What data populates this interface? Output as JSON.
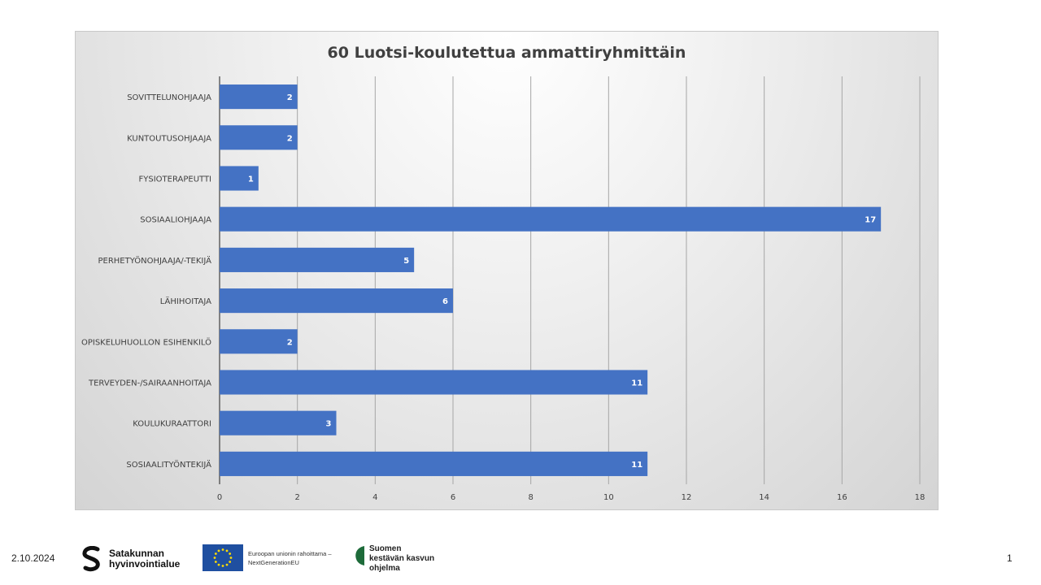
{
  "chart_data": {
    "type": "bar",
    "orientation": "horizontal",
    "title": "60 Luotsi-koulutettua ammattiryhmittäin",
    "categories": [
      "SOVITTELUNOHJAAJA",
      "KUNTOUTUSOHJAAJA",
      "FYSIOTERAPEUTTI",
      "SOSIAALIOHJAAJA",
      "PERHETYÖNOHJAAJA/-TEKIJÄ",
      "LÄHIHOITAJA",
      "OPISKELUHUOLLON ESIHENKILÖ",
      "TERVEYDEN-/SAIRAANHOITAJA",
      "KOULUKURAATTORI",
      "SOSIAALITYÖNTEKIJÄ"
    ],
    "values": [
      2,
      2,
      1,
      17,
      5,
      6,
      2,
      11,
      3,
      11
    ],
    "xlim": [
      0,
      18
    ],
    "xticks": [
      0,
      2,
      4,
      6,
      8,
      10,
      12,
      14,
      16,
      18
    ],
    "grid": true,
    "legend": "none",
    "data_labels": true,
    "bar_color": "#4472C4"
  },
  "footer": {
    "date": "2.10.2024",
    "page_number": "1",
    "logo_satakunta_line1": "Satakunnan",
    "logo_satakunta_line2": "hyvinvointialue",
    "logo_eu_line1": "Euroopan unionin rahoittama –",
    "logo_eu_line2": "NextGenerationEU",
    "logo_kasvu_line1": "Suomen",
    "logo_kasvu_line2": "kestävän kasvun",
    "logo_kasvu_line3": "ohjelma"
  }
}
